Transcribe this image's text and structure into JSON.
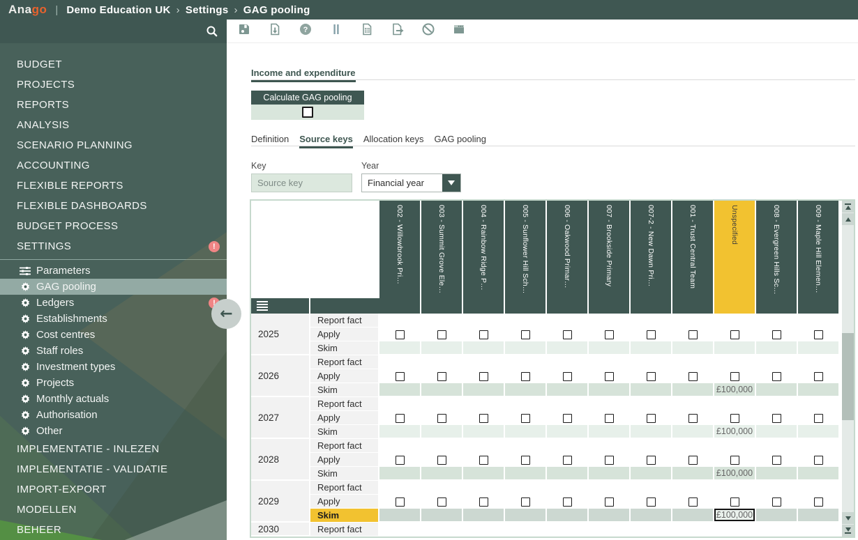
{
  "app": {
    "logo_part1": "Ana",
    "logo_part2": "go",
    "logo_divider": "|"
  },
  "breadcrumb": {
    "items": [
      "Demo Education UK",
      "Settings",
      "GAG pooling"
    ],
    "separator": "›"
  },
  "toolbar": {
    "buttons": [
      "save",
      "import",
      "help",
      "pause",
      "calculator",
      "export",
      "cancel",
      "window"
    ]
  },
  "sidebar": {
    "main_items": [
      {
        "label": "BUDGET"
      },
      {
        "label": "PROJECTS"
      },
      {
        "label": "REPORTS"
      },
      {
        "label": "ANALYSIS"
      },
      {
        "label": "SCENARIO PLANNING"
      },
      {
        "label": "ACCOUNTING"
      },
      {
        "label": "FLEXIBLE REPORTS"
      },
      {
        "label": "FLEXIBLE DASHBOARDS"
      },
      {
        "label": "BUDGET PROCESS"
      },
      {
        "label": "SETTINGS",
        "badge": "!"
      }
    ],
    "settings_items": [
      {
        "label": "Parameters",
        "icon": "sliders-icon"
      },
      {
        "label": "GAG pooling",
        "icon": "gear-icon",
        "active": true
      },
      {
        "label": "Ledgers",
        "icon": "gear-icon",
        "badge": "!"
      },
      {
        "label": "Establishments",
        "icon": "gear-icon"
      },
      {
        "label": "Cost centres",
        "icon": "gear-icon"
      },
      {
        "label": "Staff roles",
        "icon": "gear-icon"
      },
      {
        "label": "Investment types",
        "icon": "gear-icon"
      },
      {
        "label": "Projects",
        "icon": "gear-icon"
      },
      {
        "label": "Monthly actuals",
        "icon": "gear-icon"
      },
      {
        "label": "Authorisation",
        "icon": "gear-icon"
      },
      {
        "label": "Other",
        "icon": "gear-icon"
      }
    ],
    "bottom_items": [
      {
        "label": "IMPLEMENTATIE - INLEZEN"
      },
      {
        "label": "IMPLEMENTATIE - VALIDATIE"
      },
      {
        "label": "IMPORT-EXPORT"
      },
      {
        "label": "MODELLEN"
      },
      {
        "label": "BEHEER"
      }
    ],
    "collapse_arrow": "←"
  },
  "content": {
    "section_tabs": [
      {
        "label": "Income and expenditure",
        "active": true
      }
    ],
    "calc_button_label": "Calculate GAG pooling",
    "calc_checkbox_checked": false,
    "tabs": [
      {
        "label": "Definition"
      },
      {
        "label": "Source keys",
        "active": true
      },
      {
        "label": "Allocation keys"
      },
      {
        "label": "GAG pooling"
      }
    ],
    "filters": {
      "key_label": "Key",
      "key_placeholder": "Source key",
      "year_label": "Year",
      "year_value": "Financial year"
    }
  },
  "grid": {
    "columns": [
      {
        "label": "002 - Willowbrook Pri…"
      },
      {
        "label": "003 - Summit Grove Ele…"
      },
      {
        "label": "004 - Rainbow Ridge P…"
      },
      {
        "label": "005 - Sunflower Hill Sch…"
      },
      {
        "label": "006 - Oakwood Primar…"
      },
      {
        "label": "007 - Brookside Primary"
      },
      {
        "label": "007-2 - New Dawn Pri…"
      },
      {
        "label": "001 - Trust Central Team"
      },
      {
        "label": "Unspecified",
        "highlighted": true
      },
      {
        "label": "008 - Evergreen Hills Sc…"
      },
      {
        "label": "009 - Maple Hill Elemen…"
      }
    ],
    "row_labels": [
      "Report fact",
      "Apply",
      "Skim"
    ],
    "years": [
      {
        "year": "2025",
        "skim_tone": "pale",
        "skim_values": {}
      },
      {
        "year": "2026",
        "skim_tone": "sage",
        "skim_values": {
          "8": "£100,000"
        }
      },
      {
        "year": "2027",
        "skim_tone": "pale",
        "skim_values": {
          "8": "£100,000"
        }
      },
      {
        "year": "2028",
        "skim_tone": "sage",
        "skim_values": {
          "8": "£100,000"
        }
      },
      {
        "year": "2029",
        "skim_tone": "gray",
        "skim_values": {
          "8": "£100,000"
        },
        "skim_label_highlighted": true,
        "selected_cell_col": 8
      },
      {
        "year": "2030",
        "rows": [
          "Report fact"
        ]
      }
    ],
    "apply_checkboxes_checked": false
  },
  "colors": {
    "teal_dark": "#3F5752",
    "sidebar_bg": "#48615A",
    "highlight_yellow": "#F2C230",
    "logo_orange": "#E8622D",
    "badge_red": "#F08585",
    "active_item_bg": "#93AAA4",
    "skim_pale": "#E7F0EA",
    "skim_sage": "#D6E3D9",
    "skim_gray": "#CCD8D1"
  }
}
